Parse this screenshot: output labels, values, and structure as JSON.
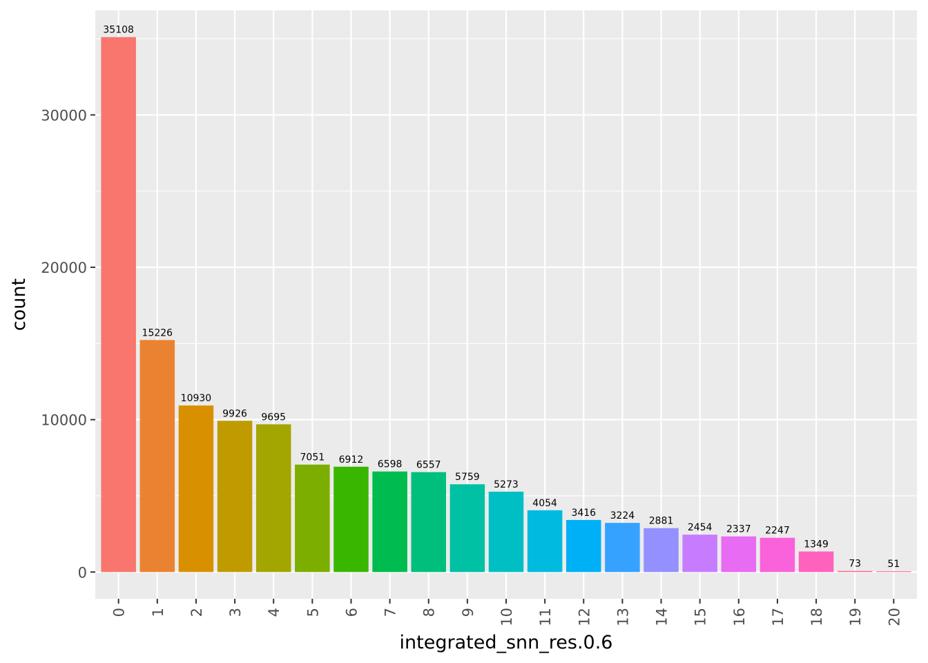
{
  "chart_data": {
    "type": "bar",
    "title": "",
    "xlabel": "integrated_snn_res.0.6",
    "ylabel": "count",
    "categories": [
      "0",
      "1",
      "2",
      "3",
      "4",
      "5",
      "6",
      "7",
      "8",
      "9",
      "10",
      "11",
      "12",
      "13",
      "14",
      "15",
      "16",
      "17",
      "18",
      "19",
      "20"
    ],
    "values": [
      35108,
      15226,
      10930,
      9926,
      9695,
      7051,
      6912,
      6598,
      6557,
      5759,
      5273,
      4054,
      3416,
      3224,
      2881,
      2454,
      2337,
      2247,
      1349,
      73,
      51
    ],
    "data_labels": [
      "35108",
      "15226",
      "10930",
      "9926",
      "9695",
      "7051",
      "6912",
      "6598",
      "6557",
      "5759",
      "5273",
      "4054",
      "3416",
      "3224",
      "2881",
      "2454",
      "2337",
      "2247",
      "1349",
      "73",
      "51"
    ],
    "colors": [
      "#F8766D",
      "#EA8331",
      "#D89000",
      "#C09B00",
      "#A3A500",
      "#7CAE00",
      "#39B600",
      "#00BB4E",
      "#00BF7D",
      "#00C1A3",
      "#00BFC4",
      "#00BAE0",
      "#00B0F6",
      "#35A2FF",
      "#9590FF",
      "#C77CFF",
      "#E76BF3",
      "#FA62DB",
      "#FF62BC",
      "#FF6C91",
      "#FF6C91"
    ],
    "yticks": [
      0,
      10000,
      20000,
      30000
    ],
    "ytick_labels": [
      "0",
      "10000",
      "20000",
      "30000"
    ],
    "ylim": [
      -1755.4,
      36863.4
    ],
    "grid": true,
    "legend": "none"
  }
}
